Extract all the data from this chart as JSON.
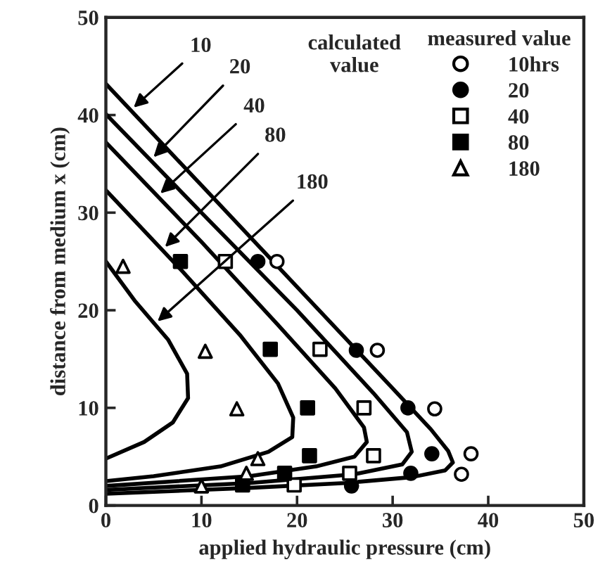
{
  "chart_data": {
    "type": "scatter",
    "xlabel": "applied hydraulic pressure (cm)",
    "ylabel": "distance from medium x (cm)",
    "legend_title": "measured value",
    "legend": "top right",
    "xlim": [
      0,
      50
    ],
    "ylim": [
      0,
      50
    ],
    "xticks": [
      0,
      10,
      20,
      30,
      40,
      50
    ],
    "yticks": [
      0,
      10,
      20,
      30,
      40,
      50
    ],
    "grid": false,
    "series": [
      {
        "type": "line",
        "color": "#000000",
        "marker": "none",
        "x": [
          0,
          10,
          20,
          30,
          34,
          35.8,
          36.3,
          35.5,
          32,
          25,
          15,
          0
        ],
        "values": [
          43.2,
          32.8,
          22.4,
          12,
          7.8,
          5.6,
          4.4,
          3.6,
          2.9,
          2.3,
          1.8,
          1.2
        ]
      },
      {
        "type": "line",
        "color": "#000000",
        "marker": "none",
        "x": [
          0,
          10,
          20,
          28,
          31.5,
          32,
          31,
          26,
          15,
          0
        ],
        "values": [
          40.1,
          30,
          20,
          11.5,
          7.5,
          5.5,
          4.2,
          3.2,
          2.3,
          1.6
        ]
      },
      {
        "type": "line",
        "color": "#000000",
        "marker": "none",
        "x": [
          0,
          10,
          18,
          24,
          27,
          27.3,
          26,
          22,
          15,
          0
        ],
        "values": [
          37.2,
          27,
          18.5,
          12,
          8,
          6.5,
          5,
          4,
          3,
          2
        ]
      },
      {
        "type": "line",
        "color": "#000000",
        "marker": "none",
        "x": [
          0,
          8,
          14,
          18,
          19.6,
          19.5,
          17,
          12,
          5,
          0
        ],
        "values": [
          32.3,
          24,
          17.5,
          12.5,
          9,
          7,
          5.5,
          4,
          3,
          2.5
        ]
      },
      {
        "type": "line",
        "color": "#000000",
        "marker": "none",
        "x": [
          0,
          3,
          6.5,
          8.5,
          8.6,
          7,
          4,
          0
        ],
        "values": [
          25,
          21,
          17,
          13.5,
          11,
          8.5,
          6.5,
          4.8
        ]
      },
      {
        "name": "10hrs",
        "color": "#ffffff",
        "marker": "circle",
        "x": [
          17.9,
          28.4,
          34.4,
          38.2,
          37.2
        ],
        "values": [
          25,
          15.9,
          9.9,
          5.3,
          3.2
        ]
      },
      {
        "name": "20",
        "color": "#000000",
        "marker": "circle",
        "x": [
          15.9,
          26.2,
          31.6,
          34.1,
          31.9,
          25.7
        ],
        "values": [
          25,
          15.9,
          10,
          5.3,
          3.3,
          2
        ]
      },
      {
        "name": "40",
        "color": "#ffffff",
        "marker": "square",
        "x": [
          12.5,
          22.4,
          27,
          28,
          25.5,
          19.7
        ],
        "values": [
          25,
          16,
          10,
          5.1,
          3.3,
          2.1
        ]
      },
      {
        "name": "80",
        "color": "#000000",
        "marker": "square",
        "x": [
          7.8,
          17.2,
          21.1,
          21.3,
          18.7,
          14.3
        ],
        "values": [
          25,
          16,
          10,
          5.1,
          3.3,
          2.1
        ]
      },
      {
        "name": "180",
        "color": "#ffffff",
        "marker": "triangle",
        "x": [
          1.8,
          10.4,
          13.7,
          15.9,
          14.7,
          10
        ],
        "values": [
          24.5,
          15.8,
          9.9,
          4.8,
          3.3,
          2
        ]
      }
    ],
    "annotations": [
      {
        "text": "10",
        "x": 2.6,
        "y": 40.5
      },
      {
        "text": "20",
        "x": 4.7,
        "y": 35.4
      },
      {
        "text": "40",
        "x": 5.4,
        "y": 31.7
      },
      {
        "text": "80",
        "x": 5.9,
        "y": 26.2
      },
      {
        "text": "180",
        "x": 5.1,
        "y": 18.6
      },
      "calculated\nvalue"
    ]
  }
}
